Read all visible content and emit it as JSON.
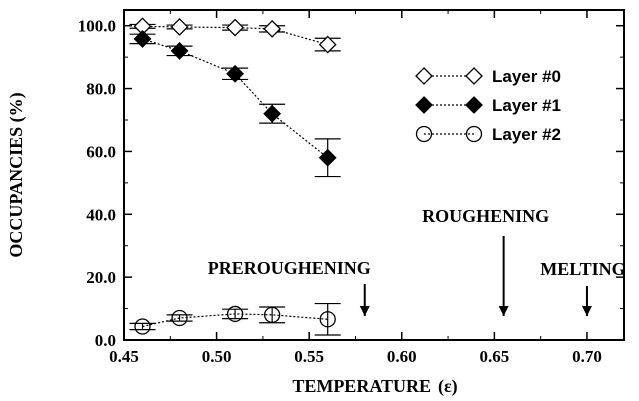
{
  "chart_data": {
    "type": "line",
    "xlabel": "TEMPERATURE",
    "xlabel_unit": "(ε)",
    "ylabel": "OCCUPANCIES (%)",
    "xlim": [
      0.45,
      0.72
    ],
    "ylim": [
      0.0,
      105.0
    ],
    "x_ticks": [
      "0.45",
      "0.50",
      "0.55",
      "0.60",
      "0.65",
      "0.70"
    ],
    "x_tick_values": [
      0.45,
      0.5,
      0.55,
      0.6,
      0.65,
      0.7
    ],
    "y_ticks": [
      "0.0",
      "20.0",
      "40.0",
      "60.0",
      "80.0",
      "100.0"
    ],
    "y_tick_values": [
      0,
      20,
      40,
      60,
      80,
      100
    ],
    "grid": false,
    "legend_position": "top-right",
    "series": [
      {
        "name": "Layer #0",
        "marker": "open-diamond",
        "x": [
          0.46,
          0.48,
          0.51,
          0.53,
          0.56
        ],
        "y": [
          99.8,
          99.6,
          99.4,
          99.0,
          94.0
        ],
        "err": [
          0.6,
          0.6,
          0.8,
          1.0,
          2.0
        ]
      },
      {
        "name": "Layer #1",
        "marker": "filled-diamond",
        "x": [
          0.46,
          0.48,
          0.51,
          0.53,
          0.56
        ],
        "y": [
          95.8,
          92.0,
          84.7,
          72.0,
          58.0
        ],
        "err": [
          1.5,
          1.5,
          1.8,
          3.0,
          6.0
        ]
      },
      {
        "name": "Layer #2",
        "marker": "open-circle",
        "x": [
          0.46,
          0.48,
          0.51,
          0.53,
          0.56
        ],
        "y": [
          4.3,
          7.0,
          8.3,
          8.0,
          6.6
        ],
        "err": [
          1.0,
          1.0,
          1.5,
          2.5,
          5.0
        ]
      }
    ],
    "annotations": [
      {
        "text": "PREROUGHENING",
        "x": 0.58
      },
      {
        "text": "ROUGHENING",
        "x": 0.655
      },
      {
        "text": "MELTING",
        "x": 0.7
      }
    ]
  }
}
